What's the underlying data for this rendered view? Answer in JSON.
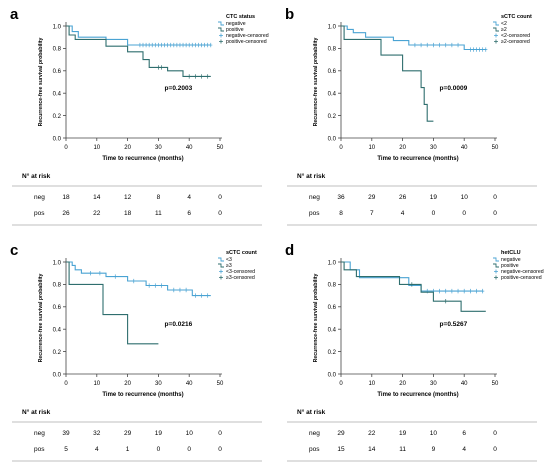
{
  "figure": {
    "line_colors": {
      "negative": "#4aa3d3",
      "positive": "#2f6e6e"
    },
    "risk_header": "N° at risk",
    "risk_row_labels": [
      "neg",
      "pos"
    ]
  },
  "chart_data": [
    {
      "type": "line",
      "panel_letter": "a",
      "xlabel": "Time to recurrence (months)",
      "ylabel": "Recurrence-free survival probability",
      "xlim": [
        0,
        50
      ],
      "ylim": [
        0,
        1
      ],
      "xticks": [
        0,
        10,
        20,
        30,
        40,
        50
      ],
      "yticks": [
        0.0,
        0.2,
        0.4,
        0.6,
        0.8,
        1.0
      ],
      "legend_title": "CTC status",
      "legend_entries": [
        "negative",
        "positive",
        "negative-censored",
        "positive-censored"
      ],
      "p_value": "p=0.2003",
      "series": [
        {
          "name": "negative",
          "points": [
            [
              0,
              1.0
            ],
            [
              2,
              1.0
            ],
            [
              2,
              0.95
            ],
            [
              4,
              0.95
            ],
            [
              4,
              0.9
            ],
            [
              13,
              0.9
            ],
            [
              13,
              0.88
            ],
            [
              20,
              0.88
            ],
            [
              20,
              0.83
            ],
            [
              47,
              0.83
            ]
          ],
          "censored": [
            24,
            25,
            26,
            27,
            28,
            29,
            30,
            31,
            32,
            33,
            34,
            35,
            36,
            37,
            38,
            39,
            40,
            41,
            42,
            43,
            44,
            45,
            46,
            47
          ]
        },
        {
          "name": "positive",
          "points": [
            [
              0,
              1.0
            ],
            [
              1,
              1.0
            ],
            [
              1,
              0.92
            ],
            [
              3,
              0.92
            ],
            [
              3,
              0.88
            ],
            [
              13,
              0.88
            ],
            [
              13,
              0.82
            ],
            [
              20,
              0.82
            ],
            [
              20,
              0.77
            ],
            [
              25,
              0.77
            ],
            [
              25,
              0.7
            ],
            [
              27,
              0.7
            ],
            [
              27,
              0.63
            ],
            [
              33,
              0.63
            ],
            [
              33,
              0.6
            ],
            [
              38,
              0.6
            ],
            [
              38,
              0.55
            ],
            [
              47,
              0.55
            ]
          ],
          "censored": [
            30,
            31,
            40,
            42,
            44,
            46
          ]
        }
      ],
      "risk_table": {
        "times": [
          0,
          10,
          20,
          30,
          40,
          50
        ],
        "neg": [
          18,
          14,
          12,
          8,
          4,
          0
        ],
        "pos": [
          26,
          22,
          18,
          11,
          6,
          0
        ]
      }
    },
    {
      "type": "line",
      "panel_letter": "b",
      "xlabel": "Time to recurrence (months)",
      "ylabel": "Recurrence-free survival probability",
      "xlim": [
        0,
        50
      ],
      "ylim": [
        0,
        1
      ],
      "xticks": [
        0,
        10,
        20,
        30,
        40,
        50
      ],
      "yticks": [
        0.0,
        0.2,
        0.4,
        0.6,
        0.8,
        1.0
      ],
      "legend_title": "sCTC count",
      "legend_entries": [
        "<2",
        "≥2",
        "<2-censored",
        "≥2-censored"
      ],
      "p_value": "p=0.0009",
      "series": [
        {
          "name": "<2",
          "points": [
            [
              0,
              1.0
            ],
            [
              2,
              1.0
            ],
            [
              2,
              0.97
            ],
            [
              4,
              0.97
            ],
            [
              4,
              0.94
            ],
            [
              8,
              0.94
            ],
            [
              8,
              0.9
            ],
            [
              17,
              0.9
            ],
            [
              17,
              0.87
            ],
            [
              22,
              0.87
            ],
            [
              22,
              0.83
            ],
            [
              40,
              0.83
            ],
            [
              40,
              0.79
            ],
            [
              47,
              0.79
            ]
          ],
          "censored": [
            24,
            26,
            28,
            30,
            32,
            34,
            36,
            38,
            42,
            43,
            44,
            45,
            46,
            47
          ]
        },
        {
          "name": "≥2",
          "points": [
            [
              0,
              1.0
            ],
            [
              1,
              1.0
            ],
            [
              1,
              0.88
            ],
            [
              13,
              0.88
            ],
            [
              13,
              0.74
            ],
            [
              20,
              0.74
            ],
            [
              20,
              0.6
            ],
            [
              26,
              0.6
            ],
            [
              26,
              0.45
            ],
            [
              27,
              0.45
            ],
            [
              27,
              0.3
            ],
            [
              28,
              0.3
            ],
            [
              28,
              0.15
            ],
            [
              30,
              0.15
            ]
          ],
          "censored": []
        }
      ],
      "risk_table": {
        "times": [
          0,
          10,
          20,
          30,
          40,
          50
        ],
        "neg": [
          36,
          29,
          26,
          19,
          10,
          0
        ],
        "pos": [
          8,
          7,
          4,
          0,
          0,
          0
        ]
      }
    },
    {
      "type": "line",
      "panel_letter": "c",
      "xlabel": "Time to recurrence (months)",
      "ylabel": "Recurrence-free survival probability",
      "xlim": [
        0,
        50
      ],
      "ylim": [
        0,
        1
      ],
      "xticks": [
        0,
        10,
        20,
        30,
        40,
        50
      ],
      "yticks": [
        0.0,
        0.2,
        0.4,
        0.6,
        0.8,
        1.0
      ],
      "legend_title": "sCTC count",
      "legend_entries": [
        "<3",
        "≥3",
        "<3-censored",
        "≥3-censored"
      ],
      "p_value": "p=0.0216",
      "series": [
        {
          "name": "<3",
          "points": [
            [
              0,
              1.0
            ],
            [
              2,
              1.0
            ],
            [
              2,
              0.97
            ],
            [
              3,
              0.97
            ],
            [
              3,
              0.93
            ],
            [
              5,
              0.93
            ],
            [
              5,
              0.9
            ],
            [
              13,
              0.9
            ],
            [
              13,
              0.87
            ],
            [
              20,
              0.87
            ],
            [
              20,
              0.83
            ],
            [
              26,
              0.83
            ],
            [
              26,
              0.79
            ],
            [
              33,
              0.79
            ],
            [
              33,
              0.75
            ],
            [
              41,
              0.75
            ],
            [
              41,
              0.7
            ],
            [
              47,
              0.7
            ]
          ],
          "censored": [
            8,
            11,
            16,
            22,
            27,
            29,
            31,
            35,
            37,
            39,
            42,
            44,
            46
          ]
        },
        {
          "name": "≥3",
          "points": [
            [
              0,
              1.0
            ],
            [
              1,
              1.0
            ],
            [
              1,
              0.8
            ],
            [
              12,
              0.8
            ],
            [
              12,
              0.53
            ],
            [
              20,
              0.53
            ],
            [
              20,
              0.27
            ],
            [
              30,
              0.27
            ]
          ],
          "censored": []
        }
      ],
      "risk_table": {
        "times": [
          0,
          10,
          20,
          30,
          40,
          50
        ],
        "neg": [
          39,
          32,
          29,
          19,
          10,
          0
        ],
        "pos": [
          5,
          4,
          1,
          0,
          0,
          0
        ]
      }
    },
    {
      "type": "line",
      "panel_letter": "d",
      "xlabel": "Time to recurrence (months)",
      "ylabel": "Recurrence-free survival probability",
      "xlim": [
        0,
        50
      ],
      "ylim": [
        0,
        1
      ],
      "xticks": [
        0,
        10,
        20,
        30,
        40,
        50
      ],
      "yticks": [
        0.0,
        0.2,
        0.4,
        0.6,
        0.8,
        1.0
      ],
      "legend_title": "hetCLU",
      "legend_entries": [
        "negative",
        "positive",
        "negative-censored",
        "positive-censored"
      ],
      "p_value": "p=0.5267",
      "series": [
        {
          "name": "negative",
          "points": [
            [
              0,
              1.0
            ],
            [
              3,
              1.0
            ],
            [
              3,
              0.93
            ],
            [
              6,
              0.93
            ],
            [
              6,
              0.86
            ],
            [
              22,
              0.86
            ],
            [
              22,
              0.79
            ],
            [
              26,
              0.79
            ],
            [
              26,
              0.74
            ],
            [
              46,
              0.74
            ]
          ],
          "censored": [
            28,
            30,
            32,
            34,
            36,
            38,
            40,
            42,
            44,
            46
          ]
        },
        {
          "name": "positive",
          "points": [
            [
              0,
              1.0
            ],
            [
              1,
              1.0
            ],
            [
              1,
              0.93
            ],
            [
              5,
              0.93
            ],
            [
              5,
              0.87
            ],
            [
              19,
              0.87
            ],
            [
              19,
              0.8
            ],
            [
              26,
              0.8
            ],
            [
              26,
              0.73
            ],
            [
              30,
              0.73
            ],
            [
              30,
              0.65
            ],
            [
              39,
              0.65
            ],
            [
              39,
              0.56
            ],
            [
              47,
              0.56
            ]
          ],
          "censored": [
            23,
            34
          ]
        }
      ],
      "risk_table": {
        "times": [
          0,
          10,
          20,
          30,
          40,
          50
        ],
        "neg": [
          29,
          22,
          19,
          10,
          6,
          0
        ],
        "pos": [
          15,
          14,
          11,
          9,
          4,
          0
        ]
      }
    }
  ]
}
